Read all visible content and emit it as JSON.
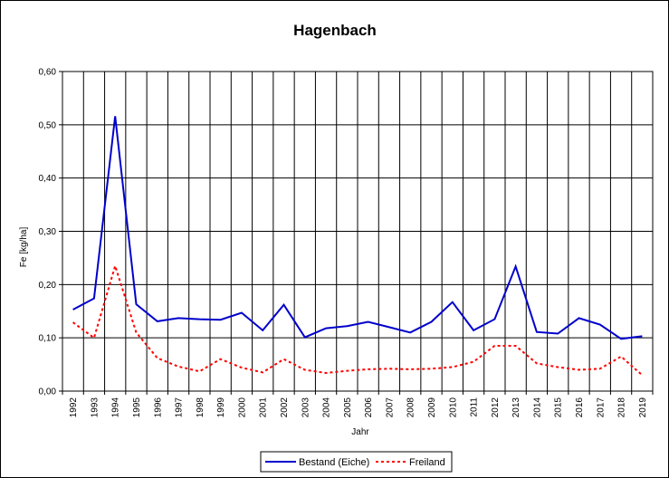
{
  "chart_data": {
    "type": "line",
    "title": "Hagenbach",
    "xlabel": "Jahr",
    "ylabel": "Fe [kg/ha]",
    "ylim": [
      0,
      0.6
    ],
    "yticks": [
      "0,00",
      "0,10",
      "0,20",
      "0,30",
      "0,40",
      "0,50",
      "0,60"
    ],
    "grid": true,
    "legend_position": "bottom",
    "categories": [
      "1992",
      "1993",
      "1994",
      "1995",
      "1996",
      "1997",
      "1998",
      "1999",
      "2000",
      "2001",
      "2002",
      "2003",
      "2004",
      "2005",
      "2006",
      "2007",
      "2008",
      "2009",
      "2010",
      "2011",
      "2012",
      "2013",
      "2014",
      "2015",
      "2016",
      "2017",
      "2018",
      "2019"
    ],
    "series": [
      {
        "name": "Bestand (Eiche)",
        "color": "#0000cc",
        "style": "solid",
        "values": [
          0.153,
          0.174,
          0.516,
          0.163,
          0.131,
          0.137,
          0.135,
          0.134,
          0.147,
          0.114,
          0.162,
          0.101,
          0.118,
          0.122,
          0.13,
          0.12,
          0.11,
          0.13,
          0.167,
          0.114,
          0.135,
          0.234,
          0.111,
          0.108,
          0.137,
          0.125,
          0.098,
          0.103
        ]
      },
      {
        "name": "Freiland",
        "color": "#ff0000",
        "style": "dotted",
        "values": [
          0.129,
          0.1,
          0.235,
          0.11,
          0.062,
          0.046,
          0.037,
          0.06,
          0.044,
          0.035,
          0.06,
          0.04,
          0.034,
          0.038,
          0.041,
          0.042,
          0.041,
          0.042,
          0.045,
          0.055,
          0.085,
          0.085,
          0.052,
          0.045,
          0.04,
          0.042,
          0.065,
          0.03
        ]
      }
    ]
  }
}
